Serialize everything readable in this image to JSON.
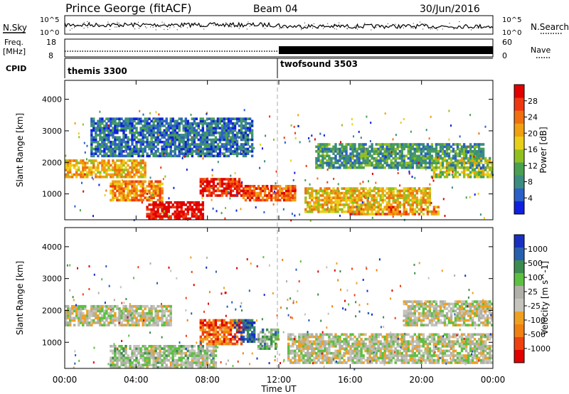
{
  "header": {
    "station": "Prince George (fitACF)",
    "beam": "Beam 04",
    "date": "30/Jun/2016"
  },
  "left_labels": {
    "nsky": "N.Sky",
    "freq": "Freq.",
    "freq_unit": "[MHz]",
    "cpid": "CPID"
  },
  "right_labels": {
    "nsearch": "N.Search",
    "nave": "Nave"
  },
  "noise_axis": {
    "left_ticks": [
      "10^5",
      "10^0"
    ],
    "right_ticks": [
      "10^5",
      "10^0"
    ]
  },
  "freq_axis": {
    "left_ticks": [
      "18",
      "8"
    ],
    "right_ticks": [
      "60",
      "0"
    ]
  },
  "cpid_segments": [
    {
      "label": "themis 3300",
      "start_hour": 0,
      "end_hour": 12
    },
    {
      "label": "twofsound 3503",
      "start_hour": 12,
      "end_hour": 24
    }
  ],
  "chart_data": [
    {
      "type": "heatmap",
      "panel": "power",
      "ylabel": "Slant Range [km]",
      "xlabel": "",
      "ylim": [
        180,
        4600
      ],
      "yticks": [
        "1000",
        "2000",
        "3000",
        "4000"
      ],
      "colorbar": {
        "label": "Power [dB]",
        "ticks": [
          "4",
          "8",
          "12",
          "16",
          "20",
          "24",
          "28"
        ],
        "colors": [
          "#1020e0",
          "#2a60c8",
          "#3c8c80",
          "#48a050",
          "#90c020",
          "#e8d018",
          "#f0a010",
          "#f07010",
          "#f03810",
          "#e00000"
        ]
      },
      "regions": [
        {
          "t0": 0.0,
          "t1": 4.5,
          "r0": 1500,
          "r1": 2100,
          "level": 0.62
        },
        {
          "t0": 2.5,
          "t1": 5.5,
          "r0": 800,
          "r1": 1400,
          "level": 0.7
        },
        {
          "t0": 4.6,
          "t1": 7.8,
          "r0": 200,
          "r1": 800,
          "level": 0.98
        },
        {
          "t0": 7.6,
          "t1": 10.0,
          "r0": 900,
          "r1": 1500,
          "level": 0.9
        },
        {
          "t0": 10.0,
          "t1": 13.0,
          "r0": 800,
          "r1": 1300,
          "level": 0.8
        },
        {
          "t0": 13.5,
          "t1": 20.5,
          "r0": 400,
          "r1": 1200,
          "level": 0.6
        },
        {
          "t0": 16.0,
          "t1": 21.0,
          "r0": 300,
          "r1": 600,
          "level": 0.75
        },
        {
          "t0": 20.5,
          "t1": 24.0,
          "r0": 1500,
          "r1": 2200,
          "level": 0.5
        },
        {
          "t0": 1.5,
          "t1": 10.5,
          "r0": 2200,
          "r1": 3400,
          "level": 0.2
        },
        {
          "t0": 14.0,
          "t1": 23.5,
          "r0": 1800,
          "r1": 2600,
          "level": 0.3
        }
      ]
    },
    {
      "type": "heatmap",
      "panel": "velocity",
      "ylabel": "Slant Range [km]",
      "xlabel": "Time UT",
      "ylim": [
        180,
        4600
      ],
      "yticks": [
        "1000",
        "2000",
        "3000",
        "4000"
      ],
      "xticks": [
        "00:00",
        "04:00",
        "08:00",
        "12:00",
        "16:00",
        "20:00",
        "00:00"
      ],
      "colorbar": {
        "label": "Velocity [m s^-1]",
        "ticks": [
          "1000",
          "500",
          "100",
          "25",
          "-25",
          "-100",
          "-500",
          "-1000"
        ],
        "colors": [
          "#1830c0",
          "#2860b0",
          "#3c8c50",
          "#5cc040",
          "#b0b0a8",
          "#c4c4bc",
          "#f0a020",
          "#f08010",
          "#f04010",
          "#e00000"
        ]
      },
      "regions": [
        {
          "t0": 0.0,
          "t1": 6.0,
          "r0": 1500,
          "r1": 2200,
          "level": 0.5
        },
        {
          "t0": 2.5,
          "t1": 8.5,
          "r0": 200,
          "r1": 900,
          "level": 0.45
        },
        {
          "t0": 7.5,
          "t1": 10.0,
          "r0": 900,
          "r1": 1700,
          "level": 0.78
        },
        {
          "t0": 9.5,
          "t1": 10.7,
          "r0": 1000,
          "r1": 1700,
          "level": 0.12
        },
        {
          "t0": 10.8,
          "t1": 12.0,
          "r0": 800,
          "r1": 1400,
          "level": 0.35
        },
        {
          "t0": 12.5,
          "t1": 24.0,
          "r0": 300,
          "r1": 1300,
          "level": 0.5
        },
        {
          "t0": 19.0,
          "t1": 24.0,
          "r0": 1500,
          "r1": 2300,
          "level": 0.5
        }
      ]
    }
  ]
}
